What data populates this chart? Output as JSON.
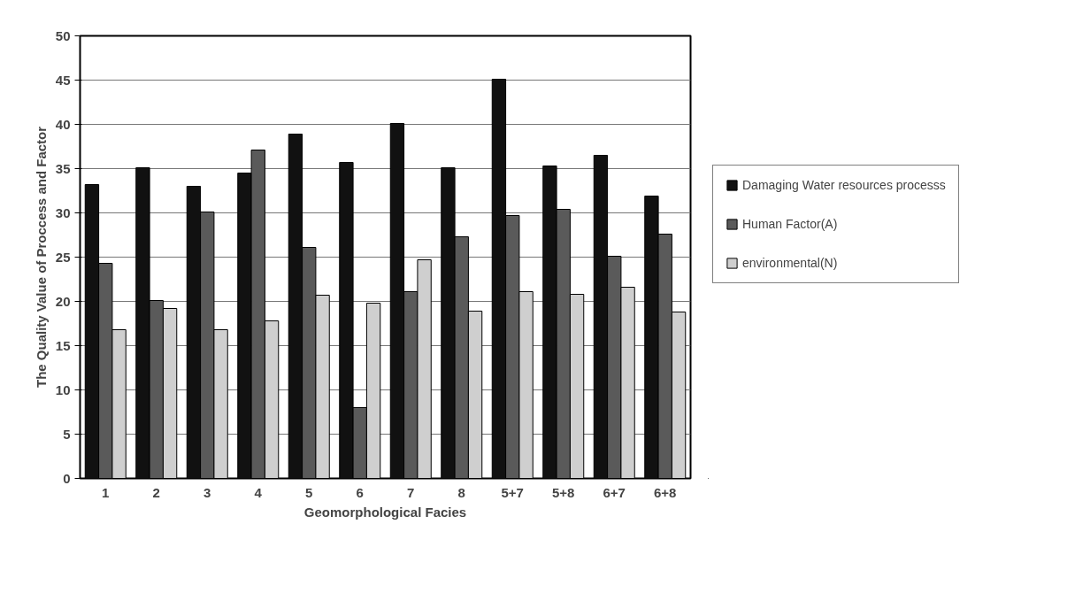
{
  "chart_data": {
    "type": "bar",
    "xlabel": "Geomorphological Facies",
    "ylabel": "The Quality Value of Proccess and Factor",
    "categories": [
      "1",
      "2",
      "3",
      "4",
      "5",
      "6",
      "7",
      "8",
      "5+7",
      "5+8",
      "6+7",
      "6+8"
    ],
    "series": [
      {
        "name": "Damaging Water resources processs",
        "color": "#111111",
        "values": [
          33.2,
          35.1,
          33.0,
          34.5,
          38.9,
          35.7,
          40.1,
          35.1,
          45.1,
          35.3,
          36.5,
          31.9
        ]
      },
      {
        "name": "Human Factor(A)",
        "color": "#5a5a5a",
        "values": [
          24.3,
          20.1,
          30.1,
          37.1,
          26.1,
          8.0,
          21.1,
          27.3,
          29.7,
          30.4,
          25.1,
          27.6
        ]
      },
      {
        "name": "environmental(N)",
        "color": "#cfcfcf",
        "values": [
          16.8,
          19.2,
          16.8,
          17.8,
          20.7,
          19.8,
          24.7,
          18.9,
          21.1,
          20.8,
          21.6,
          18.8
        ]
      }
    ],
    "ylim": [
      0,
      50
    ],
    "yticks": [
      0,
      5,
      10,
      15,
      20,
      25,
      30,
      35,
      40,
      45,
      50
    ],
    "grid": "y",
    "legend": "right"
  }
}
